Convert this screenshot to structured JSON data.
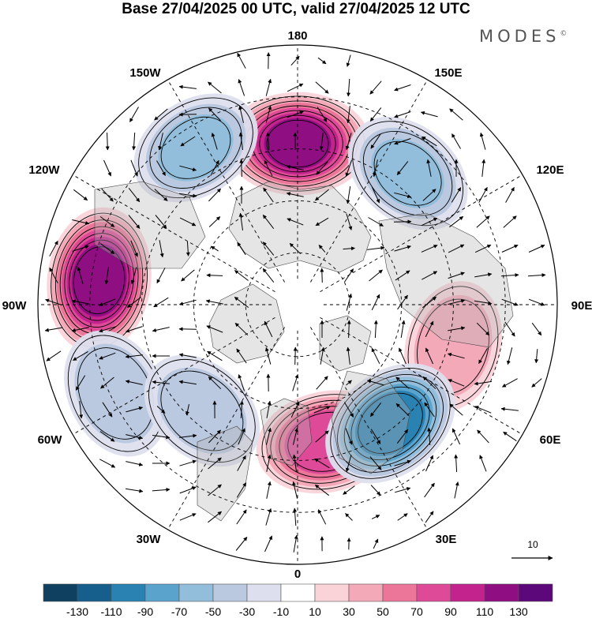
{
  "title": "Base 27/04/2025 00 UTC, valid 27/04/2025 12 UTC",
  "logo": {
    "text": "MODES",
    "mark": "©"
  },
  "map": {
    "projection": "north-polar-stereographic",
    "longitude_labels": [
      "180",
      "150E",
      "120E",
      "90E",
      "60E",
      "30E",
      "0",
      "30W",
      "60W",
      "90W",
      "120W",
      "150W"
    ],
    "reference_vector": "10",
    "anomaly_centers": [
      {
        "lon": 180,
        "r": 0.62,
        "sign": 1,
        "amp": 120
      },
      {
        "lon": 263,
        "r": 0.77,
        "sign": 1,
        "amp": 130
      },
      {
        "lon": 12,
        "r": 0.54,
        "sign": 1,
        "amp": 95
      },
      {
        "lon": 75,
        "r": 0.62,
        "sign": 1,
        "amp": 55
      },
      {
        "lon": 140,
        "r": 0.66,
        "sign": -1,
        "amp": 60
      },
      {
        "lon": 213,
        "r": 0.72,
        "sign": -1,
        "amp": 60
      },
      {
        "lon": 296,
        "r": 0.78,
        "sign": -1,
        "amp": 55
      },
      {
        "lon": 318,
        "r": 0.55,
        "sign": -1,
        "amp": 50
      },
      {
        "lon": 38,
        "r": 0.58,
        "sign": -1,
        "amp": 110
      }
    ]
  },
  "colorbar": {
    "ticks": [
      "-130",
      "-110",
      "-90",
      "-70",
      "-50",
      "-30",
      "-10",
      "10",
      "30",
      "50",
      "70",
      "90",
      "110",
      "130"
    ],
    "colors": [
      "#10405f",
      "#165f8c",
      "#2a82b2",
      "#5aa3cc",
      "#92bedb",
      "#bac8e0",
      "#dddfee",
      "#ffffff",
      "#fad3d9",
      "#f4a9b9",
      "#ec7699",
      "#df4a98",
      "#c2238d",
      "#8f0e82",
      "#5c087a"
    ]
  }
}
